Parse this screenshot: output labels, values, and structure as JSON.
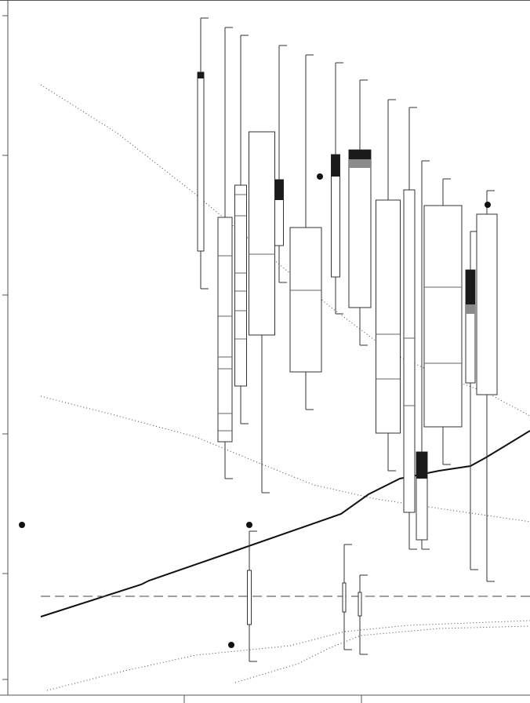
{
  "chart_data": {
    "type": "box",
    "xlim": [
      0,
      676
    ],
    "ylim": [
      0,
      886
    ],
    "xticks": [
      235,
      461
    ],
    "yticks": [
      20,
      155,
      333,
      510,
      688,
      866
    ],
    "boxes": [
      {
        "x": 256,
        "width": 8,
        "whislo": 518,
        "q1": 566,
        "q3": 794,
        "whishi": 863,
        "dark": [
          794,
          786
        ]
      },
      {
        "x": 287,
        "width": 18,
        "whislo": 276,
        "q1": 323,
        "q3": 609,
        "whishi": 851,
        "lines": [
          560,
          483,
          431,
          416,
          359,
          337
        ]
      },
      {
        "x": 307,
        "width": 15,
        "whislo": 346,
        "q1": 394,
        "q3": 650,
        "whishi": 841,
        "lines": [
          638,
          611,
          538,
          515,
          490,
          454
        ]
      },
      {
        "x": 334,
        "width": 33,
        "whislo": 258,
        "q1": 459,
        "q3": 718,
        "lines": [
          562
        ]
      },
      {
        "x": 356,
        "width": 11,
        "whislo": 526,
        "q1": 573,
        "q3": 657,
        "whishi": 828,
        "dark": [
          657,
          631
        ]
      },
      {
        "x": 390,
        "width": 40,
        "whislo": 364,
        "q1": 412,
        "q3": 596,
        "whishi": 816,
        "lines": [
          516
        ]
      },
      {
        "x": 428,
        "width": 11,
        "whislo": 486,
        "q1": 533,
        "q3": 689,
        "whishi": 806,
        "dark": [
          689,
          661
        ]
      },
      {
        "x": 459,
        "width": 28,
        "whislo": 446,
        "q1": 494,
        "q3": 695,
        "whishi": 784,
        "dark": [
          695,
          683
        ],
        "gray": [
          683,
          672
        ]
      },
      {
        "x": 495,
        "width": 31,
        "whislo": 286,
        "q1": 334,
        "q3": 631,
        "whishi": 759,
        "lines": [
          460,
          403
        ]
      },
      {
        "x": 522,
        "width": 14,
        "whislo": 186,
        "q1": 233,
        "q3": 644,
        "whishi": 749,
        "lines": [
          455,
          369
        ]
      },
      {
        "x": 538,
        "width": 14,
        "whislo": 186,
        "q1": 198,
        "q3": 310,
        "whishi": 681,
        "dark": [
          310,
          276
        ]
      },
      {
        "x": 565,
        "width": 48,
        "whislo": 294,
        "q1": 342,
        "q3": 624,
        "whishi": 658,
        "lines": [
          520,
          423
        ]
      },
      {
        "x": 600,
        "width": 12,
        "whislo": 160,
        "q1": 398,
        "q3": 542,
        "whishi": 591,
        "dark": [
          542,
          498
        ],
        "gray": [
          498,
          486
        ]
      },
      {
        "x": 621,
        "width": 26,
        "whislo": 145,
        "q1": 383,
        "q3": 613,
        "whishi": 643
      },
      {
        "x": 318,
        "width": 5,
        "whislo": 43,
        "q1": 90,
        "q3": 159,
        "whishi": 209
      },
      {
        "x": 439,
        "width": 4,
        "whislo": 58,
        "q1": 106,
        "q3": 143,
        "whishi": 192
      },
      {
        "x": 459,
        "width": 4,
        "whislo": 52,
        "q1": 101,
        "q3": 131,
        "whishi": 153
      }
    ],
    "outliers": {
      "x": [
        28,
        408,
        295,
        318,
        622
      ],
      "y": [
        217,
        661,
        64,
        217,
        625
      ]
    },
    "lines": [
      {
        "style": "solid",
        "x": [
          52,
          180,
          190,
          300,
          435,
          470,
          510,
          560,
          600,
          620,
          676
        ],
        "y": [
          100,
          141,
          146,
          184,
          231,
          256,
          276,
          286,
          292,
          303,
          337
        ]
      },
      {
        "style": "dashed",
        "x": [
          52,
          676
        ],
        "y": [
          126,
          126
        ]
      },
      {
        "style": "dotted",
        "x": [
          52,
          150,
          250,
          300,
          360,
          420,
          500,
          560,
          620,
          676
        ],
        "y": [
          778,
          716,
          638,
          596,
          546,
          496,
          436,
          408,
          386,
          356
        ]
      },
      {
        "style": "dotted",
        "x": [
          52,
          150,
          250,
          330,
          400,
          480,
          560,
          676
        ],
        "y": [
          381,
          356,
          329,
          296,
          268,
          250,
          238,
          221
        ]
      },
      {
        "style": "dotted",
        "x": [
          60,
          150,
          250,
          370,
          440,
          520,
          676
        ],
        "y": [
          6,
          29,
          51,
          63,
          81,
          89,
          95
        ]
      },
      {
        "style": "dotted",
        "x": [
          300,
          380,
          420,
          460,
          560,
          676
        ],
        "y": [
          16,
          40,
          60,
          76,
          85,
          88
        ]
      }
    ]
  }
}
